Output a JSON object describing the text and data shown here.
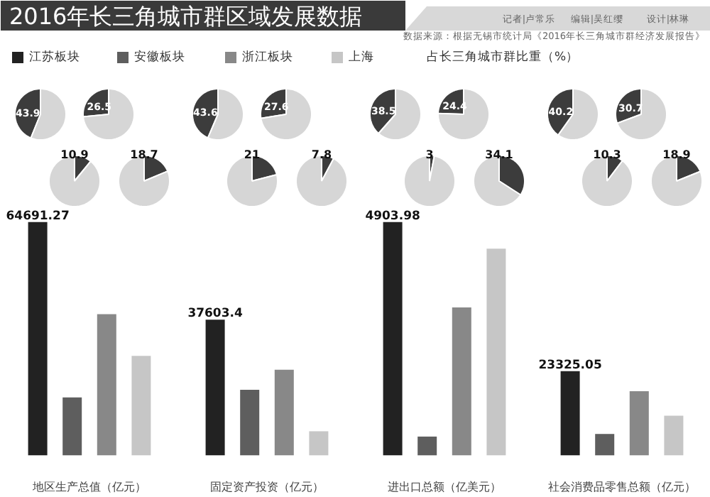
{
  "chart_data": [
    {
      "type": "other",
      "title": "2016年长三角城市群区域发展数据",
      "annotations": [
        "记者|卢常乐",
        "编辑|吴红缨",
        "设计|林琳",
        "数据来源：根据无锡市统计局《2016年长三角城市群经济发展报告》",
        "占长三角城市群比重（%）"
      ]
    },
    {
      "type": "pie",
      "categories": [
        null,
        null
      ],
      "values": [
        43.9,
        56.1
      ],
      "colors": [
        "#3c3c3c",
        "#d6d6d6"
      ],
      "value_labels": [
        "43.9",
        null
      ]
    },
    {
      "type": "pie",
      "categories": [
        null,
        null
      ],
      "values": [
        26.5,
        73.5
      ],
      "colors": [
        "#3c3c3c",
        "#d6d6d6"
      ],
      "value_labels": [
        "26.5",
        null
      ]
    },
    {
      "type": "pie",
      "categories": [
        null,
        null
      ],
      "values": [
        43.6,
        56.4
      ],
      "colors": [
        "#3c3c3c",
        "#d6d6d6"
      ],
      "value_labels": [
        "43.6",
        null
      ]
    },
    {
      "type": "pie",
      "categories": [
        null,
        null
      ],
      "values": [
        27.6,
        72.4
      ],
      "colors": [
        "#3c3c3c",
        "#d6d6d6"
      ],
      "value_labels": [
        "27.6",
        null
      ]
    },
    {
      "type": "pie",
      "categories": [
        null,
        null
      ],
      "values": [
        38.5,
        61.5
      ],
      "colors": [
        "#3c3c3c",
        "#d6d6d6"
      ],
      "value_labels": [
        "38.5",
        null
      ]
    },
    {
      "type": "pie",
      "categories": [
        null,
        null
      ],
      "values": [
        24.4,
        75.6
      ],
      "colors": [
        "#3c3c3c",
        "#d6d6d6"
      ],
      "value_labels": [
        "24.4",
        null
      ]
    },
    {
      "type": "pie",
      "categories": [
        null,
        null
      ],
      "values": [
        40.2,
        59.8
      ],
      "colors": [
        "#3c3c3c",
        "#d6d6d6"
      ],
      "value_labels": [
        "40.2",
        null
      ]
    },
    {
      "type": "pie",
      "categories": [
        null,
        null
      ],
      "values": [
        30.7,
        69.3
      ],
      "colors": [
        "#3c3c3c",
        "#d6d6d6"
      ],
      "value_labels": [
        "30.7",
        null
      ]
    },
    {
      "type": "pie",
      "categories": [
        null,
        null
      ],
      "values": [
        10.9,
        89.1
      ],
      "colors": [
        "#3c3c3c",
        "#d6d6d6"
      ],
      "value_labels": [
        "10.9",
        null
      ]
    },
    {
      "type": "pie",
      "categories": [
        null,
        null
      ],
      "values": [
        18.7,
        81.3
      ],
      "colors": [
        "#3c3c3c",
        "#d6d6d6"
      ],
      "value_labels": [
        "18.7",
        null
      ]
    },
    {
      "type": "pie",
      "categories": [
        null,
        null
      ],
      "values": [
        21,
        79
      ],
      "colors": [
        "#3c3c3c",
        "#d6d6d6"
      ],
      "value_labels": [
        "21",
        null
      ]
    },
    {
      "type": "pie",
      "categories": [
        null,
        null
      ],
      "values": [
        7.8,
        92.2
      ],
      "colors": [
        "#3c3c3c",
        "#d6d6d6"
      ],
      "value_labels": [
        "7.8",
        null
      ]
    },
    {
      "type": "pie",
      "categories": [
        null,
        null
      ],
      "values": [
        3,
        97
      ],
      "colors": [
        "#3c3c3c",
        "#d6d6d6"
      ],
      "value_labels": [
        "3",
        null
      ]
    },
    {
      "type": "pie",
      "categories": [
        null,
        null
      ],
      "values": [
        34.1,
        65.9
      ],
      "colors": [
        "#3c3c3c",
        "#d6d6d6"
      ],
      "value_labels": [
        "34.1",
        null
      ]
    },
    {
      "type": "pie",
      "categories": [
        null,
        null
      ],
      "values": [
        10.3,
        89.7
      ],
      "colors": [
        "#3c3c3c",
        "#d6d6d6"
      ],
      "value_labels": [
        "10.3",
        null
      ]
    },
    {
      "type": "pie",
      "categories": [
        null,
        null
      ],
      "values": [
        18.9,
        81.1
      ],
      "colors": [
        "#3c3c3c",
        "#d6d6d6"
      ],
      "value_labels": [
        "18.9",
        null
      ]
    },
    {
      "type": "bar",
      "categories": [
        "地区生产总值（亿元）",
        "固定资产投资（亿元）",
        "进出口总额（亿美元）",
        "社会消费品零售总额（亿元）"
      ],
      "series": [
        {
          "name": "江苏板块",
          "color": "#222222",
          "values": [
            64691.27,
            37603.4,
            null,
            23325.05
          ],
          "value_labels": [
            "64691.27",
            "37603.4",
            null,
            "23325.05"
          ]
        },
        {
          "name": "安徽板块",
          "color": "#5e5e5e",
          "values": [
            16070,
            18170,
            null,
            5920
          ]
        },
        {
          "name": "浙江板块",
          "color": "#888888",
          "values": [
            39140,
            23730,
            null,
            17770
          ]
        },
        {
          "name": "上海",
          "color": "#c6c6c6",
          "values": [
            27550,
            6670,
            null,
            11000
          ]
        },
        {
          "color": "#222222",
          "axis": "y2",
          "values": [
            null,
            null,
            4903.98,
            null
          ],
          "value_labels": [
            null,
            null,
            "4903.98",
            null
          ]
        },
        {
          "color": "#5e5e5e",
          "axis": "y2",
          "values": [
            null,
            null,
            394,
            null
          ]
        },
        {
          "color": "#888888",
          "axis": "y2",
          "values": [
            null,
            null,
            3110,
            null
          ]
        },
        {
          "color": "#c6c6c6",
          "axis": "y2",
          "values": [
            null,
            null,
            4342,
            null
          ]
        }
      ],
      "tick_labels": "x",
      "legend": "top"
    }
  ]
}
